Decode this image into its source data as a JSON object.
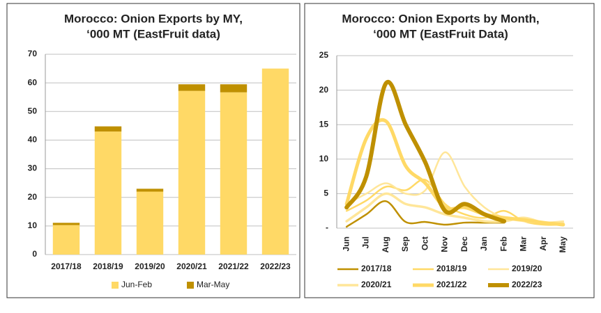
{
  "chart_data": [
    {
      "type": "bar",
      "stacked": true,
      "title": [
        "Morocco: Onion Exports by MY,",
        "‘000 MT (EastFruit data)"
      ],
      "categories": [
        "2017/18",
        "2018/19",
        "2019/20",
        "2020/21",
        "2021/22",
        "2022/23"
      ],
      "series": [
        {
          "name": "Jun-Feb",
          "color": "#ffd966",
          "values": [
            10.3,
            43,
            22,
            57.2,
            56.7,
            65
          ]
        },
        {
          "name": "Mar-May",
          "color": "#bf9000",
          "values": [
            0.8,
            1.8,
            1,
            2.3,
            2.8,
            0
          ]
        }
      ],
      "ylim": [
        0,
        70
      ],
      "yticks": [
        0,
        10,
        20,
        30,
        40,
        50,
        60,
        70
      ],
      "grid": true,
      "legend": "bottom"
    },
    {
      "type": "line",
      "smooth": true,
      "title": [
        "Morocco: Onion Exports by Month,",
        "‘000 MT (EastFruit Data)"
      ],
      "categories": [
        "Jun",
        "Jul",
        "Aug",
        "Sep",
        "Oct",
        "Nov",
        "Dec",
        "Jan",
        "Feb",
        "Mar",
        "Apr",
        "May"
      ],
      "series": [
        {
          "name": "2017/18",
          "color": "#bf9000",
          "values": [
            0.2,
            2,
            3.9,
            0.9,
            0.9,
            0.5,
            0.8,
            0.8,
            0.8,
            null,
            null,
            null
          ]
        },
        {
          "name": "2018/19",
          "color": "#ffd966",
          "values": [
            2.5,
            4,
            6,
            5.5,
            7,
            3.5,
            2,
            1.5,
            2.5,
            1,
            0.5,
            0.5
          ]
        },
        {
          "name": "2019/20",
          "color": "#ffe699",
          "values": [
            3.5,
            5,
            6.5,
            5,
            5.5,
            11,
            6,
            3,
            1.5,
            1,
            0.8,
            1
          ]
        },
        {
          "name": "2020/21",
          "color": "#ffe699",
          "values": [
            1,
            3,
            5,
            3.5,
            3,
            2,
            1.5,
            1,
            1,
            1.5,
            0.8,
            0.7
          ]
        },
        {
          "name": "2021/22",
          "color": "#ffd966",
          "values": [
            3.5,
            13,
            15.5,
            9,
            6.5,
            3,
            3,
            2,
            1.5,
            1.2,
            0.8,
            0.5
          ]
        },
        {
          "name": "2022/23",
          "color": "#bf9000",
          "values": [
            3,
            7.5,
            21,
            15,
            9.5,
            2.5,
            3.5,
            2,
            1,
            null,
            null,
            null
          ]
        }
      ],
      "ylim": [
        0,
        25
      ],
      "yticks": [
        {
          "value": 0,
          "label": "-"
        },
        5,
        10,
        15,
        20,
        25
      ],
      "grid": true,
      "legend": "bottom"
    }
  ]
}
